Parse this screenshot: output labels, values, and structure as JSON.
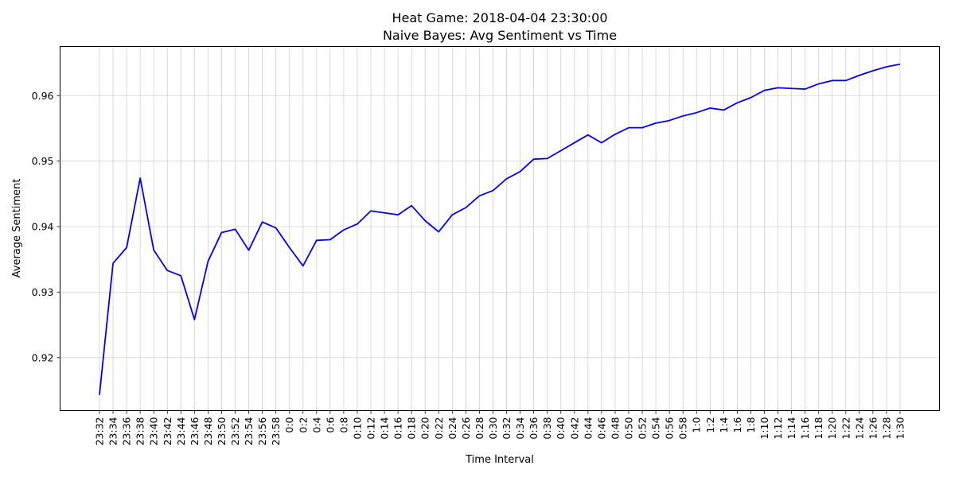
{
  "chart_data": {
    "type": "line",
    "title": "Heat Game: 2018-04-04 23:30:00",
    "subtitle": "Naive Bayes: Avg Sentiment vs Time",
    "xlabel": "Time Interval",
    "ylabel": "Average Sentiment",
    "ylim": [
      0.9119,
      0.9675
    ],
    "yticks": [
      0.92,
      0.93,
      0.94,
      0.95,
      0.96
    ],
    "grid": true,
    "line_color": "#0000ff",
    "categories": [
      "23:32",
      "23:34",
      "23:36",
      "23:38",
      "23:40",
      "23:42",
      "23:44",
      "23:46",
      "23:48",
      "23:50",
      "23:52",
      "23:54",
      "23:56",
      "23:58",
      "0:0",
      "0:2",
      "0:4",
      "0:6",
      "0:8",
      "0:10",
      "0:12",
      "0:14",
      "0:16",
      "0:18",
      "0:20",
      "0:22",
      "0:24",
      "0:26",
      "0:28",
      "0:30",
      "0:32",
      "0:34",
      "0:36",
      "0:38",
      "0:40",
      "0:42",
      "0:44",
      "0:46",
      "0:48",
      "0:50",
      "0:52",
      "0:54",
      "0:56",
      "0:58",
      "1:0",
      "1:2",
      "1:4",
      "1:6",
      "1:8",
      "1:10",
      "1:12",
      "1:14",
      "1:16",
      "1:18",
      "1:20",
      "1:22",
      "1:24",
      "1:26",
      "1:28",
      "1:30"
    ],
    "values": [
      0.9143,
      0.9344,
      0.9368,
      0.9474,
      0.9364,
      0.9333,
      0.9325,
      0.9258,
      0.9347,
      0.9391,
      0.9396,
      0.9364,
      0.9407,
      0.9398,
      0.9368,
      0.934,
      0.9379,
      0.938,
      0.9395,
      0.9404,
      0.9424,
      0.9421,
      0.9418,
      0.9432,
      0.9409,
      0.9392,
      0.9418,
      0.9429,
      0.9447,
      0.9455,
      0.9473,
      0.9484,
      0.9503,
      0.9504,
      0.9516,
      0.9528,
      0.954,
      0.9528,
      0.9541,
      0.9551,
      0.9551,
      0.9558,
      0.9562,
      0.9569,
      0.9574,
      0.9581,
      0.9578,
      0.9589,
      0.9597,
      0.9608,
      0.9612,
      0.9611,
      0.961,
      0.9618,
      0.9623,
      0.9623,
      0.9631,
      0.9638,
      0.9644,
      0.9648
    ]
  }
}
